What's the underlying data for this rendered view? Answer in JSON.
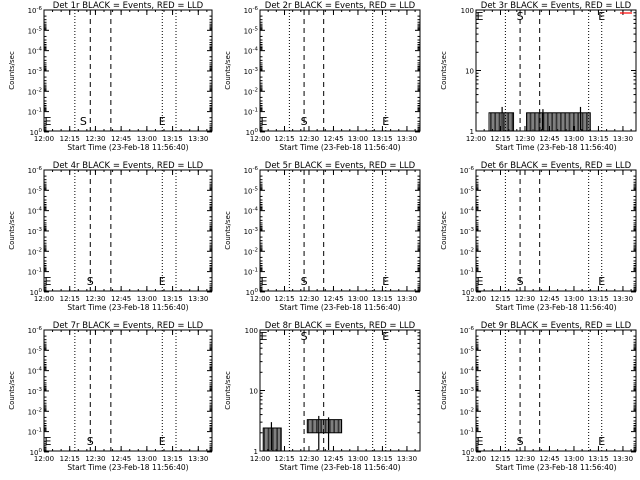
{
  "xlabel": "Start Time (23-Feb-18 11:56:40)",
  "ylabel": "Counts/sec",
  "x_ticks": [
    "12:00",
    "12:15",
    "12:30",
    "12:45",
    "13:00",
    "13:15",
    "13:30"
  ],
  "colors": {
    "events": "#000000",
    "lld": "#ff0000",
    "axes": "#000000"
  },
  "chart_data": [
    {
      "type": "line",
      "title": "Det 1r BLACK = Events, RED = LLD",
      "yscale": "log",
      "ylim": [
        0.9,
        1e-06
      ],
      "y_tick_labels": [
        "10^0",
        "10^-1",
        "10^-2",
        "10^-3",
        "10^-4",
        "10^-5",
        "10^-6"
      ],
      "xlim": [
        "12:00",
        "13:38"
      ],
      "markers": {
        "dotted": [
          "12:18",
          "13:09",
          "13:17"
        ],
        "dashed": [
          "12:27",
          "12:39"
        ],
        "S": "12:23",
        "E": "13:09"
      },
      "series": []
    },
    {
      "type": "line",
      "title": "Det 2r BLACK = Events, RED = LLD",
      "yscale": "log",
      "ylim": [
        0.9,
        1e-06
      ],
      "y_tick_labels": [
        "10^0",
        "10^-1",
        "10^-2",
        "10^-3",
        "10^-4",
        "10^-5",
        "10^-6"
      ],
      "xlim": [
        "12:00",
        "13:38"
      ],
      "markers": {
        "dotted": [
          "12:18",
          "13:09",
          "13:17"
        ],
        "dashed": [
          "12:27",
          "12:39"
        ],
        "S": "12:27",
        "E": "13:17"
      },
      "series": []
    },
    {
      "type": "line",
      "title": "Det 3r BLACK = Events, RED = LLD",
      "yscale": "log",
      "ylim": [
        1,
        100
      ],
      "y_tick_labels": [
        "1",
        "10",
        "100"
      ],
      "xlim": [
        "12:00",
        "13:38"
      ],
      "markers": {
        "dotted": [
          "12:18",
          "13:09",
          "13:17"
        ],
        "dashed": [
          "12:27",
          "12:39"
        ],
        "S": "12:27",
        "E": "13:17"
      },
      "series": [
        {
          "color": "#000000",
          "bands": [
            {
              "from": "12:08",
              "to": "12:23",
              "low": 1,
              "high": 2
            },
            {
              "from": "12:31",
              "to": "13:10",
              "low": 1,
              "high": 2
            }
          ],
          "spikes": [
            {
              "at": "12:16",
              "value": 2.5
            },
            {
              "at": "12:41",
              "value": 2.3
            },
            {
              "at": "13:04",
              "value": 2.5
            }
          ]
        }
      ]
    },
    {
      "type": "line",
      "title": "Det 4r BLACK = Events, RED = LLD",
      "yscale": "log",
      "ylim": [
        0.9,
        1e-06
      ],
      "y_tick_labels": [
        "10^0",
        "10^-1",
        "10^-2",
        "10^-3",
        "10^-4",
        "10^-5",
        "10^-6"
      ],
      "xlim": [
        "12:00",
        "13:38"
      ],
      "markers": {
        "dotted": [
          "12:18",
          "13:09",
          "13:17"
        ],
        "dashed": [
          "12:27",
          "12:39"
        ],
        "S": "12:27",
        "E": "13:09"
      },
      "series": []
    },
    {
      "type": "line",
      "title": "Det 5r BLACK = Events, RED = LLD",
      "yscale": "log",
      "ylim": [
        0.9,
        1e-06
      ],
      "y_tick_labels": [
        "10^0",
        "10^-1",
        "10^-2",
        "10^-3",
        "10^-4",
        "10^-5",
        "10^-6"
      ],
      "xlim": [
        "12:00",
        "13:38"
      ],
      "markers": {
        "dotted": [
          "12:18",
          "13:09",
          "13:17"
        ],
        "dashed": [
          "12:27",
          "12:39"
        ],
        "S": "12:27",
        "E": "13:17"
      },
      "series": []
    },
    {
      "type": "line",
      "title": "Det 6r BLACK = Events, RED = LLD",
      "yscale": "log",
      "ylim": [
        0.9,
        1e-06
      ],
      "y_tick_labels": [
        "10^0",
        "10^-1",
        "10^-2",
        "10^-3",
        "10^-4",
        "10^-5",
        "10^-6"
      ],
      "xlim": [
        "12:00",
        "13:38"
      ],
      "markers": {
        "dotted": [
          "12:18",
          "13:09",
          "13:17"
        ],
        "dashed": [
          "12:27",
          "12:39"
        ],
        "S": "12:27",
        "E": "13:17"
      },
      "series": []
    },
    {
      "type": "line",
      "title": "Det 7r BLACK = Events, RED = LLD",
      "yscale": "log",
      "ylim": [
        0.9,
        1e-06
      ],
      "y_tick_labels": [
        "10^0",
        "10^-1",
        "10^-2",
        "10^-3",
        "10^-4",
        "10^-5",
        "10^-6"
      ],
      "xlim": [
        "12:00",
        "13:38"
      ],
      "markers": {
        "dotted": [
          "12:18",
          "13:09",
          "13:17"
        ],
        "dashed": [
          "12:27",
          "12:39"
        ],
        "S": "12:27",
        "E": "13:09"
      },
      "series": []
    },
    {
      "type": "line",
      "title": "Det 8r BLACK = Events, RED = LLD",
      "yscale": "log",
      "ylim": [
        1,
        100
      ],
      "y_tick_labels": [
        "1",
        "10",
        "100"
      ],
      "xlim": [
        "12:00",
        "13:38"
      ],
      "markers": {
        "dotted": [
          "12:18",
          "13:09",
          "13:17"
        ],
        "dashed": [
          "12:27",
          "12:39"
        ],
        "S": "12:27",
        "E": "13:17"
      },
      "series": [
        {
          "color": "#000000",
          "bands": [
            {
              "from": "12:02",
              "to": "12:13",
              "low": 1,
              "high": 2.4
            },
            {
              "from": "12:29",
              "to": "12:50",
              "low": 2,
              "high": 3.3
            }
          ],
          "spikes": [
            {
              "at": "12:07",
              "value": 3.0
            },
            {
              "at": "12:36",
              "value": 3.8
            },
            {
              "at": "12:42",
              "value": 3.6
            }
          ]
        }
      ]
    },
    {
      "type": "line",
      "title": "Det 9r BLACK = Events, RED = LLD",
      "yscale": "log",
      "ylim": [
        0.9,
        1e-06
      ],
      "y_tick_labels": [
        "10^0",
        "10^-1",
        "10^-2",
        "10^-3",
        "10^-4",
        "10^-5",
        "10^-6"
      ],
      "xlim": [
        "12:00",
        "13:38"
      ],
      "markers": {
        "dotted": [
          "12:18",
          "13:09",
          "13:17"
        ],
        "dashed": [
          "12:27",
          "12:39"
        ],
        "S": "12:27",
        "E": "13:17"
      },
      "series": []
    }
  ]
}
